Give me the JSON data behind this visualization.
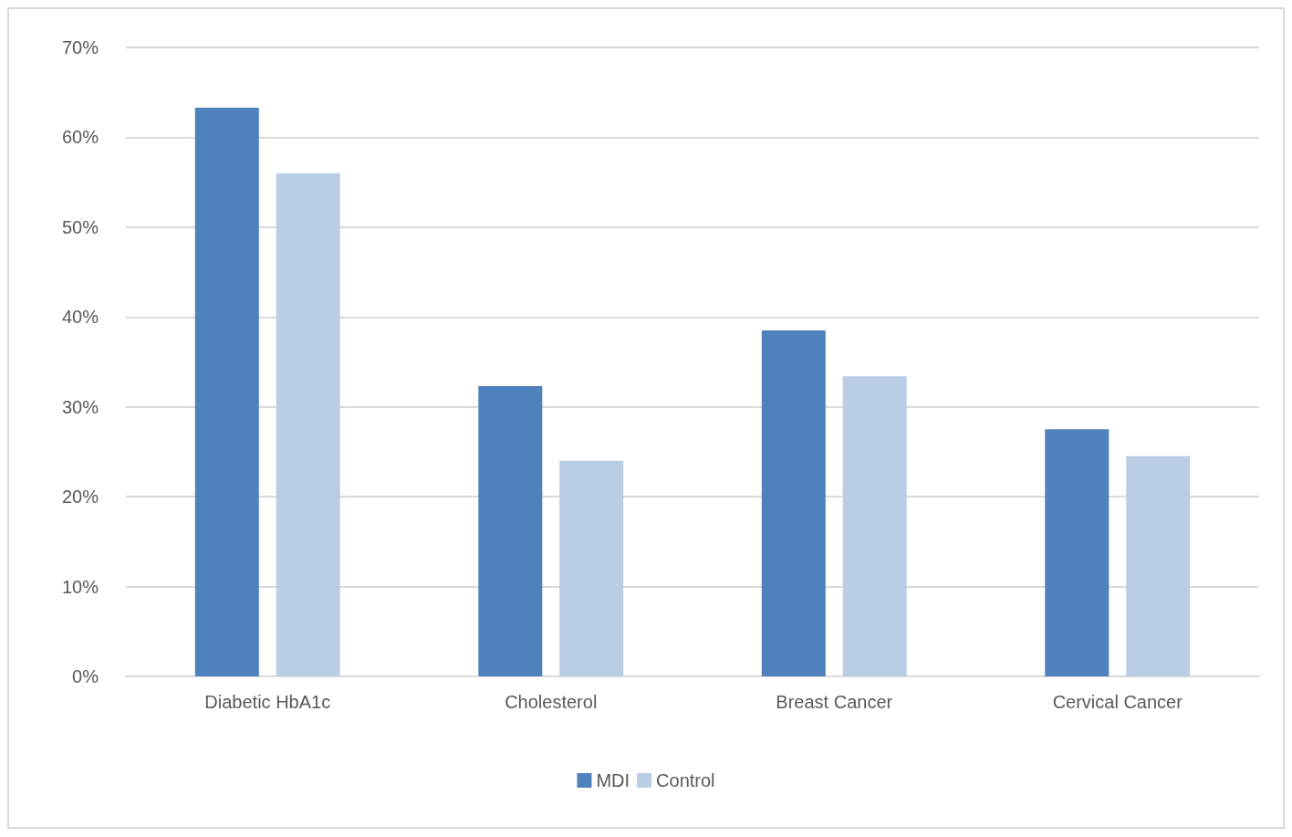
{
  "chart_data": {
    "type": "bar",
    "categories": [
      "Diabetic HbA1c",
      "Cholesterol",
      "Breast Cancer",
      "Cervical Cancer"
    ],
    "series": [
      {
        "name": "MDI",
        "color": "#4f81bd",
        "values": [
          63.3,
          32.3,
          38.5,
          27.5
        ]
      },
      {
        "name": "Control",
        "color": "#b9cde5",
        "values": [
          56,
          24,
          33.4,
          24.5
        ]
      }
    ],
    "ylim": [
      0,
      70
    ],
    "yticks": [
      {
        "value": 0,
        "label": "0%"
      },
      {
        "value": 10,
        "label": "10%"
      },
      {
        "value": 20,
        "label": "20%"
      },
      {
        "value": 30,
        "label": "30%"
      },
      {
        "value": 40,
        "label": "40%"
      },
      {
        "value": 50,
        "label": "50%"
      },
      {
        "value": 60,
        "label": "60%"
      },
      {
        "value": 70,
        "label": "70%"
      }
    ],
    "grid": "y",
    "legend": "bottom"
  }
}
